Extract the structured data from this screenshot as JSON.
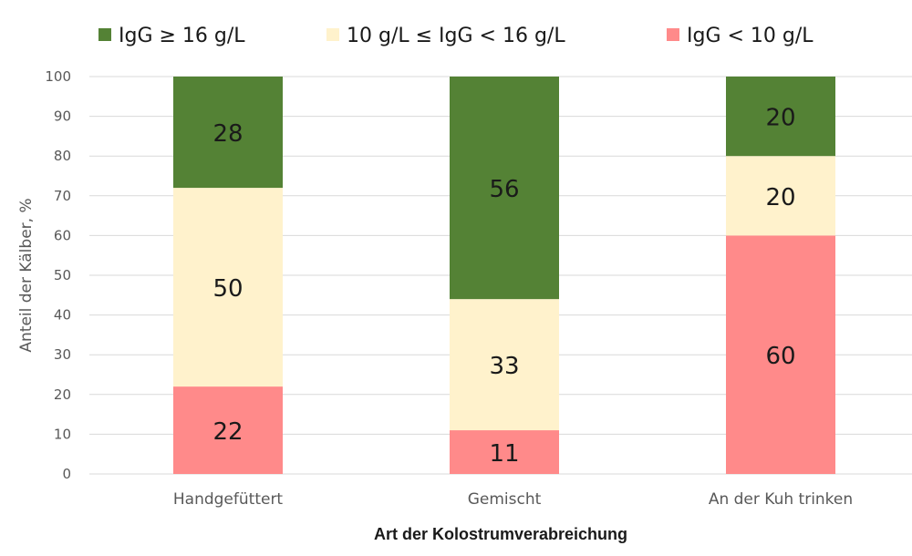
{
  "chart_data": {
    "type": "bar",
    "stacked": true,
    "categories": [
      "Handgefüttert",
      "Gemischt",
      "An der Kuh trinken"
    ],
    "series": [
      {
        "name": "IgG < 10 g/L",
        "values": [
          22,
          11,
          60
        ],
        "labels": [
          "22",
          "11",
          "60"
        ],
        "color": "#ff8a8a"
      },
      {
        "name": "10 g/L ≤ IgG < 16 g/L",
        "values": [
          50,
          33,
          20
        ],
        "labels": [
          "50",
          "33",
          "20"
        ],
        "color": "#fff2cc"
      },
      {
        "name": "IgG ≥ 16 g/L",
        "values": [
          28,
          56,
          20
        ],
        "labels": [
          "28",
          "56",
          "20"
        ],
        "color": "#548235"
      }
    ],
    "legend_order": [
      "IgG ≥ 16 g/L",
      "10 g/L ≤ IgG < 16 g/L",
      "IgG < 10 g/L"
    ],
    "xlabel": "Art der Kolostrumverabreichung",
    "ylabel": "Anteil der Kälber, %",
    "ylim": [
      0,
      100
    ],
    "yticks": [
      0,
      10,
      20,
      30,
      40,
      50,
      60,
      70,
      80,
      90,
      100
    ],
    "grid": true,
    "legend_position": "top",
    "colors": {
      "gridline": "#d9d9d9",
      "axis_text": "#595959",
      "label_text": "#1a1a1a"
    }
  }
}
